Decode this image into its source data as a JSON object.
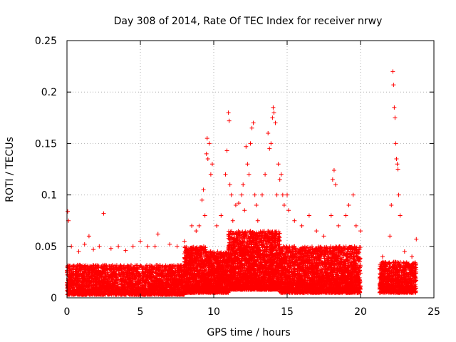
{
  "chart_data": {
    "type": "scatter",
    "title": "Day 308 of 2014, Rate Of TEC Index for receiver nrwy",
    "xlabel": "GPS time / hours",
    "ylabel": "ROTI / TECUs",
    "xlim": [
      0,
      25
    ],
    "ylim": [
      0,
      0.25
    ],
    "xticks": [
      0,
      5,
      10,
      15,
      20,
      25
    ],
    "yticks": [
      0,
      0.05,
      0.1,
      0.15,
      0.2,
      0.25
    ],
    "xtick_labels": [
      "0",
      "5",
      "10",
      "15",
      "20",
      "25"
    ],
    "ytick_labels": [
      "0",
      "0.05",
      "0.1",
      "0.15",
      "0.2",
      "0.25"
    ],
    "grid": true,
    "marker": "plus",
    "series": [
      {
        "color": "#ff0000",
        "points": [
          [
            0.05,
            0.084
          ],
          [
            0.1,
            0.075
          ],
          [
            2.5,
            0.082
          ],
          [
            0.3,
            0.05
          ],
          [
            0.8,
            0.045
          ],
          [
            1.2,
            0.052
          ],
          [
            1.5,
            0.06
          ],
          [
            1.8,
            0.047
          ],
          [
            2.2,
            0.05
          ],
          [
            3.0,
            0.048
          ],
          [
            3.5,
            0.05
          ],
          [
            4.0,
            0.046
          ],
          [
            4.5,
            0.05
          ],
          [
            5.0,
            0.055
          ],
          [
            5.5,
            0.05
          ],
          [
            6.0,
            0.05
          ],
          [
            6.2,
            0.062
          ],
          [
            7.0,
            0.052
          ],
          [
            7.5,
            0.05
          ],
          [
            8.0,
            0.055
          ],
          [
            8.5,
            0.07
          ],
          [
            8.8,
            0.065
          ],
          [
            9.0,
            0.07
          ],
          [
            9.2,
            0.095
          ],
          [
            9.3,
            0.105
          ],
          [
            9.4,
            0.08
          ],
          [
            9.5,
            0.14
          ],
          [
            9.55,
            0.155
          ],
          [
            9.6,
            0.135
          ],
          [
            9.7,
            0.15
          ],
          [
            9.8,
            0.12
          ],
          [
            9.9,
            0.13
          ],
          [
            10.2,
            0.07
          ],
          [
            10.5,
            0.08
          ],
          [
            10.8,
            0.12
          ],
          [
            10.9,
            0.143
          ],
          [
            11.0,
            0.18
          ],
          [
            11.05,
            0.172
          ],
          [
            11.1,
            0.11
          ],
          [
            11.2,
            0.1
          ],
          [
            11.3,
            0.075
          ],
          [
            11.5,
            0.09
          ],
          [
            11.7,
            0.092
          ],
          [
            11.9,
            0.1
          ],
          [
            12.0,
            0.11
          ],
          [
            12.1,
            0.085
          ],
          [
            12.2,
            0.147
          ],
          [
            12.3,
            0.13
          ],
          [
            12.4,
            0.12
          ],
          [
            12.5,
            0.15
          ],
          [
            12.6,
            0.165
          ],
          [
            12.7,
            0.17
          ],
          [
            12.8,
            0.1
          ],
          [
            12.9,
            0.09
          ],
          [
            13.0,
            0.075
          ],
          [
            13.3,
            0.1
          ],
          [
            13.5,
            0.12
          ],
          [
            13.7,
            0.16
          ],
          [
            13.8,
            0.145
          ],
          [
            13.9,
            0.15
          ],
          [
            14.0,
            0.175
          ],
          [
            14.05,
            0.185
          ],
          [
            14.1,
            0.18
          ],
          [
            14.2,
            0.17
          ],
          [
            14.3,
            0.1
          ],
          [
            14.4,
            0.13
          ],
          [
            14.5,
            0.115
          ],
          [
            14.6,
            0.12
          ],
          [
            14.7,
            0.1
          ],
          [
            14.8,
            0.09
          ],
          [
            15.0,
            0.1
          ],
          [
            15.1,
            0.085
          ],
          [
            15.5,
            0.075
          ],
          [
            16.0,
            0.07
          ],
          [
            16.5,
            0.08
          ],
          [
            17.0,
            0.065
          ],
          [
            17.5,
            0.06
          ],
          [
            18.0,
            0.08
          ],
          [
            18.1,
            0.115
          ],
          [
            18.2,
            0.124
          ],
          [
            18.3,
            0.11
          ],
          [
            18.5,
            0.07
          ],
          [
            19.0,
            0.08
          ],
          [
            19.2,
            0.09
          ],
          [
            19.5,
            0.1
          ],
          [
            19.7,
            0.07
          ],
          [
            20.0,
            0.065
          ],
          [
            21.5,
            0.04
          ],
          [
            22.0,
            0.06
          ],
          [
            22.1,
            0.09
          ],
          [
            22.2,
            0.22
          ],
          [
            22.25,
            0.207
          ],
          [
            22.3,
            0.185
          ],
          [
            22.35,
            0.175
          ],
          [
            22.4,
            0.15
          ],
          [
            22.45,
            0.135
          ],
          [
            22.5,
            0.13
          ],
          [
            22.55,
            0.125
          ],
          [
            22.6,
            0.1
          ],
          [
            22.7,
            0.08
          ],
          [
            23.0,
            0.045
          ],
          [
            23.5,
            0.04
          ],
          [
            23.8,
            0.057
          ]
        ],
        "dense_bands": [
          {
            "x": [
              0.0,
              8.0
            ],
            "y": [
              0.003,
              0.032
            ],
            "count": 2600
          },
          {
            "x": [
              8.0,
              9.5
            ],
            "y": [
              0.005,
              0.05
            ],
            "count": 800
          },
          {
            "x": [
              9.5,
              11.0
            ],
            "y": [
              0.005,
              0.045
            ],
            "count": 800
          },
          {
            "x": [
              11.0,
              14.5
            ],
            "y": [
              0.008,
              0.065
            ],
            "count": 2200
          },
          {
            "x": [
              14.5,
              20.0
            ],
            "y": [
              0.005,
              0.05
            ],
            "count": 2600
          },
          {
            "x": [
              21.3,
              23.8
            ],
            "y": [
              0.005,
              0.035
            ],
            "count": 900
          }
        ]
      }
    ]
  }
}
